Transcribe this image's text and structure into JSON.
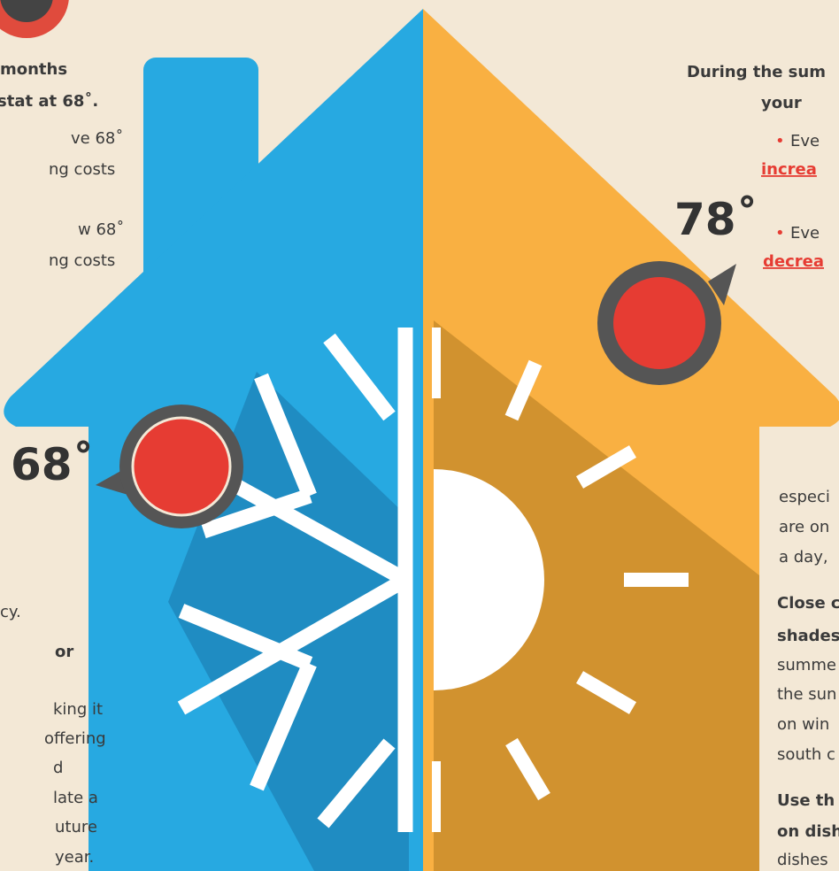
{
  "left_text": {
    "heading": [
      "months",
      "stat at 68˚."
    ],
    "bullets": [
      [
        "ve 68˚",
        "ng costs"
      ],
      [
        "w 68˚",
        "ng costs"
      ]
    ],
    "body": [
      "cy."
    ],
    "tip_heading": [
      "or"
    ],
    "tip_body": [
      "king it",
      "offering",
      "d",
      "late a",
      "uture",
      "year."
    ]
  },
  "thermostats": [
    {
      "label": "68˚"
    },
    {
      "label": "78˚"
    }
  ],
  "right_text": {
    "heading": [
      "During the sum",
      "your"
    ],
    "bullets": [
      {
        "marker": "•",
        "text": "Eve",
        "link": "increa"
      },
      {
        "marker": "•",
        "text": "Eve",
        "link": "decrea"
      }
    ],
    "body": [
      "especi",
      "are on",
      "a day,"
    ],
    "tips": [
      {
        "heading": [
          "Close c",
          "shades"
        ],
        "body": [
          "summe",
          "the sun",
          "on win",
          "south c"
        ]
      },
      {
        "heading": [
          "Use th",
          "on dish"
        ],
        "body": [
          "dishes"
        ]
      }
    ]
  }
}
